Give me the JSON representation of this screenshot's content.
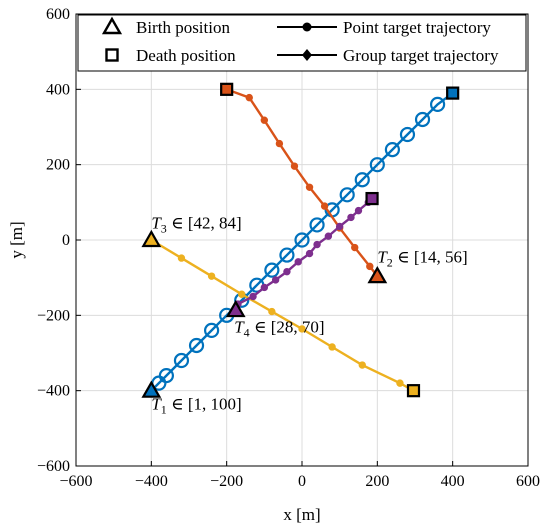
{
  "chart_data": {
    "type": "line",
    "xlabel": "x [m]",
    "ylabel": "y [m]",
    "xlim": [
      -600,
      600
    ],
    "ylim": [
      -600,
      600
    ],
    "xticks": [
      -600,
      -400,
      -200,
      0,
      200,
      400,
      600
    ],
    "yticks": [
      -600,
      -400,
      -200,
      0,
      200,
      400,
      600
    ],
    "grid": true,
    "legend_position": "top",
    "legend": [
      {
        "label": "Birth position",
        "marker": "triangle"
      },
      {
        "label": "Point target trajectory",
        "marker": "circle-line"
      },
      {
        "label": "Death position",
        "marker": "square"
      },
      {
        "label": "Group target trajectory",
        "marker": "diamond-line"
      }
    ],
    "series": [
      {
        "color": "#0072BD",
        "marker": "circle-ring",
        "birth": [
          -400,
          -400
        ],
        "death": [
          400,
          390
        ],
        "points": [
          [
            -400,
            -400
          ],
          [
            -380,
            -380
          ],
          [
            -360,
            -360
          ],
          [
            -320,
            -320
          ],
          [
            -280,
            -280
          ],
          [
            -240,
            -240
          ],
          [
            -200,
            -200
          ],
          [
            -160,
            -160
          ],
          [
            -120,
            -120
          ],
          [
            -80,
            -80
          ],
          [
            -40,
            -40
          ],
          [
            0,
            0
          ],
          [
            40,
            40
          ],
          [
            80,
            80
          ],
          [
            120,
            120
          ],
          [
            160,
            160
          ],
          [
            200,
            200
          ],
          [
            240,
            240
          ],
          [
            280,
            280
          ],
          [
            320,
            320
          ],
          [
            360,
            360
          ],
          [
            400,
            390
          ]
        ]
      },
      {
        "color": "#D95319",
        "marker": "dot",
        "birth": [
          200,
          -96
        ],
        "death": [
          -200,
          400
        ],
        "points": [
          [
            200,
            -96
          ],
          [
            180,
            -70
          ],
          [
            140,
            -20
          ],
          [
            100,
            32
          ],
          [
            60,
            90
          ],
          [
            20,
            140
          ],
          [
            -20,
            196
          ],
          [
            -60,
            256
          ],
          [
            -100,
            318
          ],
          [
            -140,
            378
          ],
          [
            -200,
            400
          ]
        ]
      },
      {
        "color": "#EDB120",
        "marker": "dot",
        "birth": [
          -400,
          0
        ],
        "death": [
          296,
          -400
        ],
        "points": [
          [
            -400,
            0
          ],
          [
            -320,
            -48
          ],
          [
            -240,
            -96
          ],
          [
            -160,
            -144
          ],
          [
            -80,
            -190
          ],
          [
            0,
            -236
          ],
          [
            80,
            -284
          ],
          [
            160,
            -332
          ],
          [
            260,
            -380
          ],
          [
            296,
            -400
          ]
        ]
      },
      {
        "color": "#7E2F8E",
        "marker": "dot",
        "birth": [
          -176,
          -186
        ],
        "death": [
          186,
          110
        ],
        "points": [
          [
            -176,
            -186
          ],
          [
            -170,
            -170
          ],
          [
            -130,
            -150
          ],
          [
            -100,
            -126
          ],
          [
            -70,
            -106
          ],
          [
            -40,
            -84
          ],
          [
            -10,
            -58
          ],
          [
            20,
            -36
          ],
          [
            40,
            -12
          ],
          [
            70,
            10
          ],
          [
            100,
            36
          ],
          [
            130,
            60
          ],
          [
            150,
            78
          ],
          [
            176,
            100
          ],
          [
            186,
            110
          ]
        ]
      }
    ],
    "annotations": [
      {
        "label": "T",
        "sub": "1",
        "interval": " ∈ [1, 100]",
        "x": -400,
        "y": -450
      },
      {
        "label": "T",
        "sub": "2",
        "interval": " ∈ [14, 56]",
        "x": 200,
        "y": -60
      },
      {
        "label": "T",
        "sub": "3",
        "interval": " ∈ [42, 84]",
        "x": -400,
        "y": 30
      },
      {
        "label": "T",
        "sub": "4",
        "interval": " ∈ [28, 70]",
        "x": -180,
        "y": -245
      }
    ]
  }
}
